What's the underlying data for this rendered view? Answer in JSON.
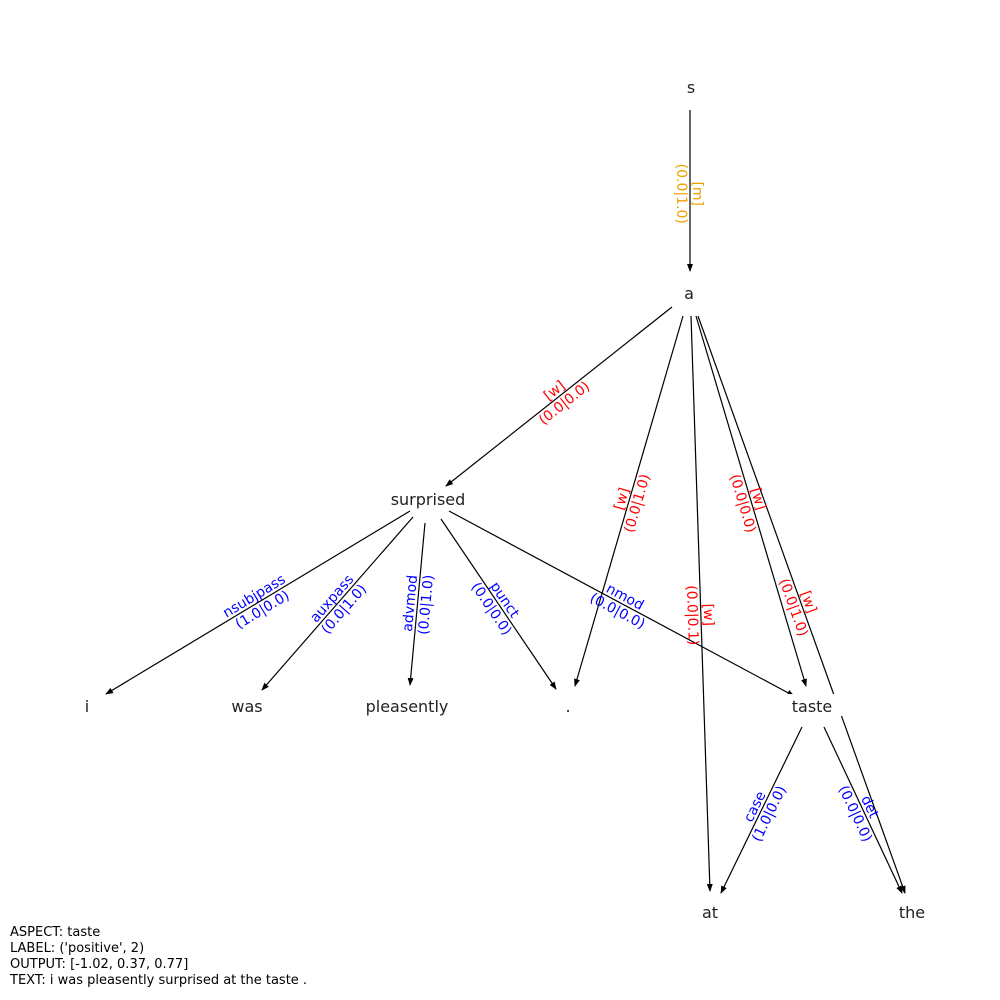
{
  "colors": {
    "m_edge": "#f0a000",
    "w_edge": "#ff0000",
    "dep_edge": "#0000ff",
    "node_text": "#222222",
    "arrow": "#000000"
  },
  "nodes": [
    {
      "id": "s",
      "label": "s"
    },
    {
      "id": "a",
      "label": "a"
    },
    {
      "id": "surprised",
      "label": "surprised"
    },
    {
      "id": "i",
      "label": "i"
    },
    {
      "id": "was",
      "label": "was"
    },
    {
      "id": "pleasently",
      "label": "pleasently"
    },
    {
      "id": "dot",
      "label": "."
    },
    {
      "id": "taste",
      "label": "taste"
    },
    {
      "id": "at",
      "label": "at"
    },
    {
      "id": "the",
      "label": "the"
    }
  ],
  "edges": [
    {
      "from": "s",
      "to": "a",
      "kind": "m",
      "line1": "[m]",
      "line2": "(0.0|1.0)"
    },
    {
      "from": "a",
      "to": "surprised",
      "kind": "w",
      "line1": "[w]",
      "line2": "(0.0|0.0)"
    },
    {
      "from": "a",
      "to": "dot",
      "kind": "w",
      "line1": "[w]",
      "line2": "(0.0|1.0)"
    },
    {
      "from": "a",
      "to": "at",
      "kind": "w",
      "line1": "[w]",
      "line2": "(0.0|0.1)"
    },
    {
      "from": "a",
      "to": "taste",
      "kind": "w",
      "line1": "[w]",
      "line2": "(0.0|0.0)"
    },
    {
      "from": "a",
      "to": "the",
      "kind": "w",
      "line1": "[w]",
      "line2": "(0.0|1.0)"
    },
    {
      "from": "surprised",
      "to": "i",
      "kind": "dep",
      "line1": "nsubjpass",
      "line2": "(1.0|0.0)"
    },
    {
      "from": "surprised",
      "to": "was",
      "kind": "dep",
      "line1": "auxpass",
      "line2": "(0.0|1.0)"
    },
    {
      "from": "surprised",
      "to": "pleasently",
      "kind": "dep",
      "line1": "advmod",
      "line2": "(0.0|1.0)"
    },
    {
      "from": "surprised",
      "to": "dot",
      "kind": "dep",
      "line1": "punct",
      "line2": "(0.0|0.0)"
    },
    {
      "from": "surprised",
      "to": "taste",
      "kind": "dep",
      "line1": "nmod",
      "line2": "(0.0|0.0)"
    },
    {
      "from": "taste",
      "to": "at",
      "kind": "dep",
      "line1": "case",
      "line2": "(1.0|0.0)"
    },
    {
      "from": "taste",
      "to": "the",
      "kind": "dep",
      "line1": "det",
      "line2": "(0.0|0.0)"
    }
  ],
  "info": {
    "aspect": "ASPECT: taste",
    "label": "LABEL: ('positive', 2)",
    "output": "OUTPUT: [-1.02, 0.37, 0.77]",
    "text": "TEXT: i was pleasently surprised at the taste ."
  }
}
